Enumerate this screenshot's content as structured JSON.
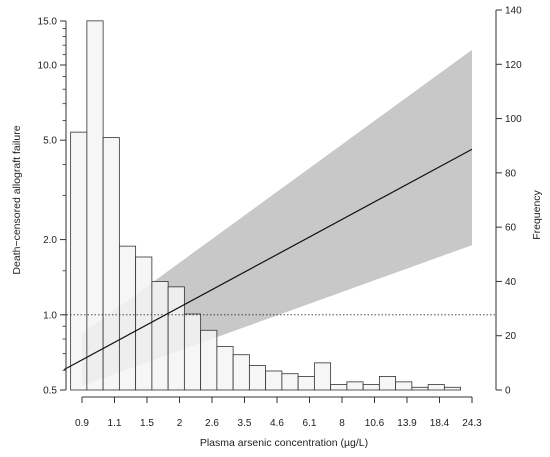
{
  "chart_data": {
    "type": "histogram_with_regression",
    "xlabel": "Plasma arsenic concentration (µg/L)",
    "ylabel_left": "Death−censored allograft failure",
    "ylabel_right": "Frequency",
    "x_tick_labels": [
      "0.9",
      "1.1",
      "1.5",
      "2",
      "2.6",
      "3.5",
      "4.6",
      "6.1",
      "8",
      "10.6",
      "13.9",
      "18.4",
      "24.3"
    ],
    "left_axis": {
      "scale": "log",
      "ylim": [
        0.5,
        15.0
      ],
      "tick_labels": [
        "0.5",
        "1.0",
        "2.0",
        "5.0",
        "10.0",
        "15.0"
      ],
      "tick_values": [
        0.5,
        1.0,
        2.0,
        5.0,
        10.0,
        15.0
      ],
      "minor_ticks": [
        0.6,
        0.7,
        0.8,
        0.9,
        1.5,
        3,
        4,
        6,
        7,
        8,
        9,
        11,
        12,
        13,
        14
      ]
    },
    "right_axis": {
      "scale": "linear",
      "ylim": [
        0,
        140
      ],
      "tick_values": [
        0,
        20,
        40,
        60,
        80,
        100,
        120,
        140
      ],
      "tick_labels": [
        "0",
        "20",
        "40",
        "60",
        "80",
        "100",
        "120",
        "140"
      ]
    },
    "histogram": {
      "description_free": true,
      "bin_index_start": -0.35,
      "bin_width": 0.5,
      "frequencies": [
        95,
        136,
        93,
        53,
        49,
        40,
        38,
        28,
        22,
        16,
        13,
        9,
        7,
        6,
        5,
        10,
        2,
        3,
        2,
        5,
        3,
        1,
        2,
        1
      ]
    },
    "regression": {
      "reference_line": 1.0,
      "line": [
        [
          0,
          0.66
        ],
        [
          12,
          4.6
        ]
      ],
      "ci_lower": [
        [
          0,
          0.52
        ],
        [
          12,
          1.9
        ]
      ],
      "ci_upper": [
        [
          0,
          0.84
        ],
        [
          12,
          11.5
        ]
      ],
      "pivot_index": 2.75
    },
    "colors": {
      "bar_fill": "#f5f5f5",
      "bar_stroke": "#333333",
      "ci_band": "#c8c8c8",
      "line": "#111111",
      "reference": "#333333"
    }
  }
}
